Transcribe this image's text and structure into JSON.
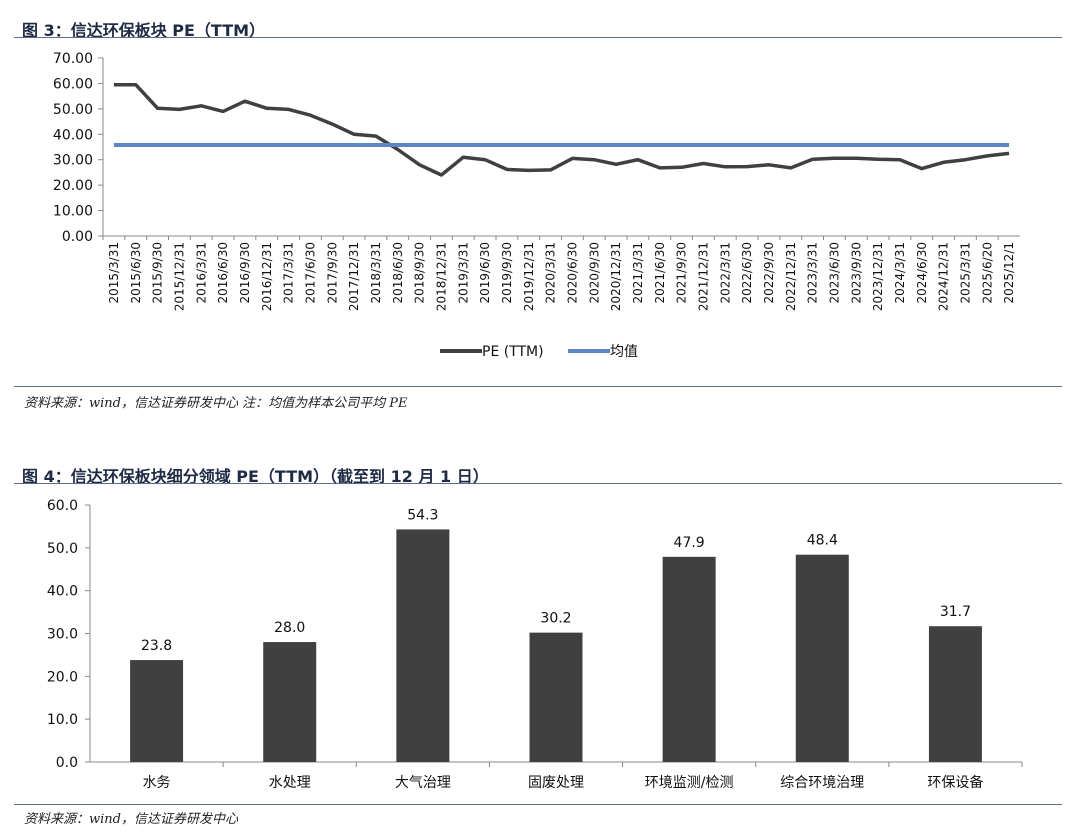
{
  "charts": [
    {
      "figure_title": "图 3：信达环保板块 PE（TTM）",
      "source": "资料来源：wind，信达证券研发中心  注：均值为样本公司平均 PE"
    },
    {
      "figure_title": "图 4：信达环保板块细分领域 PE（TTM）（截至到 12 月 1 日）",
      "source": "资料来源：wind，信达证券研发中心"
    }
  ],
  "chart_data": [
    {
      "type": "line",
      "x": [
        "2015/3/31",
        "2015/6/30",
        "2015/9/30",
        "2015/12/31",
        "2016/3/31",
        "2016/6/30",
        "2016/9/30",
        "2016/12/31",
        "2017/3/31",
        "2017/6/30",
        "2017/9/30",
        "2017/12/31",
        "2018/3/31",
        "2018/6/30",
        "2018/9/30",
        "2018/12/31",
        "2019/3/31",
        "2019/6/30",
        "2019/9/30",
        "2019/12/31",
        "2020/3/31",
        "2020/6/30",
        "2020/9/30",
        "2020/12/31",
        "2021/3/31",
        "2021/6/30",
        "2021/9/30",
        "2021/12/31",
        "2022/3/31",
        "2022/6/30",
        "2022/9/30",
        "2022/12/31",
        "2023/3/31",
        "2023/6/30",
        "2023/9/30",
        "2023/12/31",
        "2024/3/31",
        "2024/6/30",
        "2024/12/31",
        "2025/3/31",
        "2025/6/20",
        "2025/12/1"
      ],
      "series": [
        {
          "name": "PE (TTM)",
          "color": "#404040",
          "values": [
            59.5,
            59.5,
            50.2,
            49.8,
            51.2,
            49.0,
            53.0,
            50.2,
            49.8,
            47.5,
            44.0,
            40.0,
            39.3,
            34.0,
            28.0,
            24.0,
            31.0,
            30.0,
            26.2,
            25.8,
            26.0,
            30.5,
            30.0,
            28.2,
            30.0,
            26.8,
            27.0,
            28.5,
            27.2,
            27.3,
            28.0,
            26.8,
            30.2,
            30.6,
            30.6,
            30.2,
            30.0,
            26.5,
            29.0,
            30.0,
            31.5,
            32.5
          ]
        },
        {
          "name": "均值",
          "color": "#5b87c4",
          "values": [
            35.8,
            35.8,
            35.8,
            35.8,
            35.8,
            35.8,
            35.8,
            35.8,
            35.8,
            35.8,
            35.8,
            35.8,
            35.8,
            35.8,
            35.8,
            35.8,
            35.8,
            35.8,
            35.8,
            35.8,
            35.8,
            35.8,
            35.8,
            35.8,
            35.8,
            35.8,
            35.8,
            35.8,
            35.8,
            35.8,
            35.8,
            35.8,
            35.8,
            35.8,
            35.8,
            35.8,
            35.8,
            35.8,
            35.8,
            35.8,
            35.8,
            35.8
          ]
        }
      ],
      "yticks": [
        "0.00",
        "10.00",
        "20.00",
        "30.00",
        "40.00",
        "50.00",
        "60.00",
        "70.00"
      ],
      "ylim": [
        0,
        70
      ],
      "grid": false,
      "legend_position": "bottom-center"
    },
    {
      "type": "bar",
      "categories": [
        "水务",
        "水处理",
        "大气治理",
        "固废处理",
        "环境监测/检测",
        "综合环境治理",
        "环保设备"
      ],
      "values": [
        23.8,
        28.0,
        54.3,
        30.2,
        47.9,
        48.4,
        31.7
      ],
      "data_labels": [
        "23.8",
        "28.0",
        "54.3",
        "30.2",
        "47.9",
        "48.4",
        "31.7"
      ],
      "yticks": [
        "0.0",
        "10.0",
        "20.0",
        "30.0",
        "40.0",
        "50.0",
        "60.0"
      ],
      "ylim": [
        0,
        60
      ],
      "bar_color": "#404040",
      "grid": false
    }
  ]
}
